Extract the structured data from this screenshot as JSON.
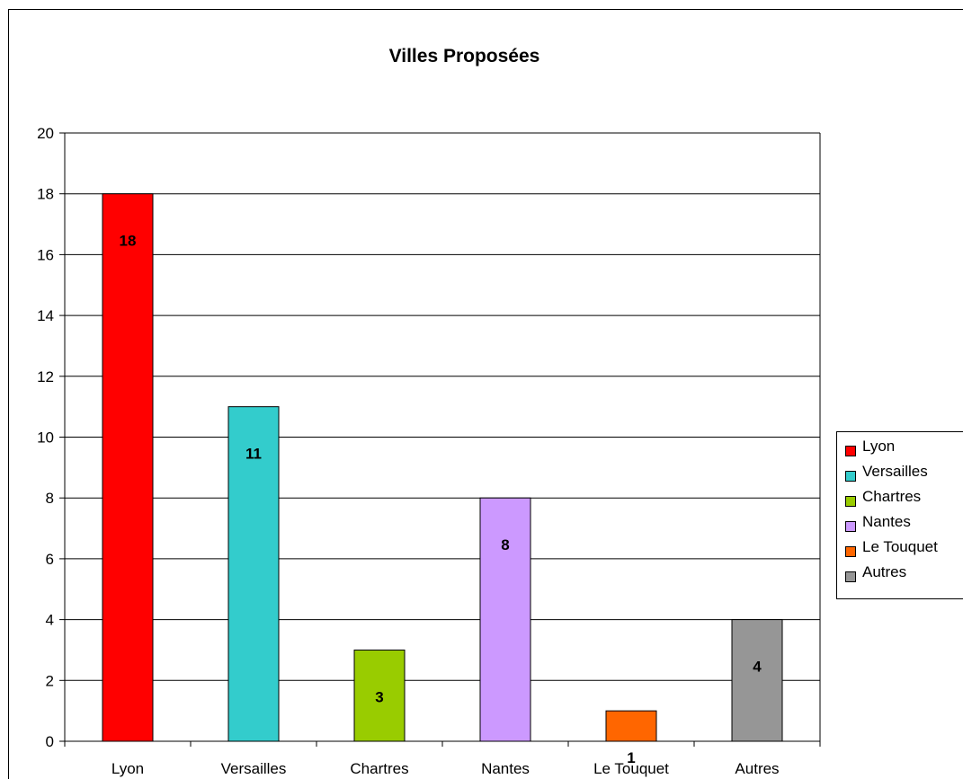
{
  "chart_data": {
    "type": "bar",
    "title": "Villes Proposées",
    "categories": [
      "Lyon",
      "Versailles",
      "Chartres",
      "Nantes",
      "Le Touquet",
      "Autres"
    ],
    "values": [
      18,
      11,
      3,
      8,
      1,
      4
    ],
    "colors": [
      "#ff0000",
      "#33cccc",
      "#99cc00",
      "#cc99ff",
      "#ff6600",
      "#969696"
    ],
    "ylim": [
      0,
      20
    ],
    "yticks": [
      "0",
      "2",
      "4",
      "6",
      "8",
      "10",
      "12",
      "14",
      "16",
      "18",
      "20"
    ],
    "grid": true,
    "legend_position": "right",
    "legend": [
      "Lyon",
      "Versailles",
      "Chartres",
      "Nantes",
      "Le Touquet",
      "Autres"
    ]
  }
}
